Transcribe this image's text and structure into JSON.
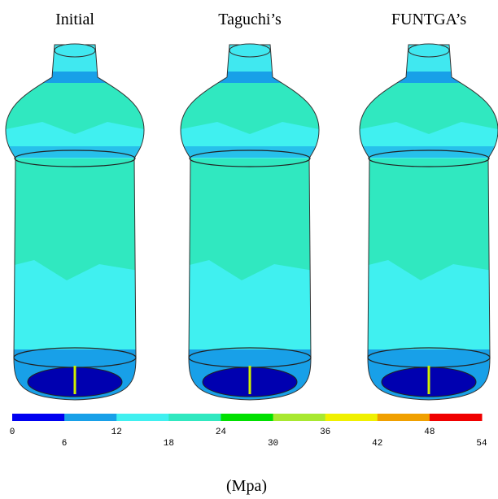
{
  "panels": [
    {
      "title": "Initial"
    },
    {
      "title": "Taguchi’s"
    },
    {
      "title": "FUNTGA’s"
    }
  ],
  "colorbar": {
    "colors": [
      "#0000f0",
      "#18a0e8",
      "#40f0f0",
      "#30e8c0",
      "#00e000",
      "#a8e830",
      "#f0f000",
      "#f0a000",
      "#f00000"
    ],
    "ticks": [
      0,
      6,
      12,
      18,
      24,
      30,
      36,
      42,
      48,
      54
    ],
    "unit": "(Mpa)"
  }
}
